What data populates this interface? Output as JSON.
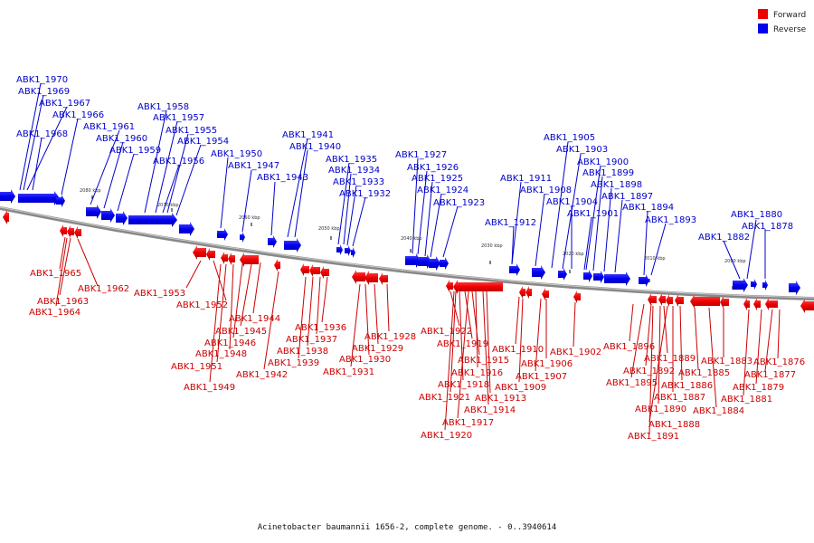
{
  "legend": [
    {
      "label": "Forward",
      "color": "#ee0000"
    },
    {
      "label": "Reverse",
      "color": "#0000ee"
    }
  ],
  "caption": "Acinetobacter baumannii 1656-2, complete genome. - 0..3940614",
  "ticks": [
    "2080 kbp",
    "2070 kbp",
    "2060 kbp",
    "2050 kbp",
    "2040 kbp",
    "2030 kbp",
    "2020 kbp",
    "2010 kbp",
    "2000 kbp"
  ],
  "reverse_genes": [
    "ABK1_1970",
    "ABK1_1969",
    "ABK1_1967",
    "ABK1_1966",
    "ABK1_1968",
    "ABK1_1961",
    "ABK1_1960",
    "ABK1_1959",
    "ABK1_1958",
    "ABK1_1957",
    "ABK1_1955",
    "ABK1_1954",
    "ABK1_1956",
    "ABK1_1950",
    "ABK1_1947",
    "ABK1_1943",
    "ABK1_1941",
    "ABK1_1940",
    "ABK1_1935",
    "ABK1_1934",
    "ABK1_1933",
    "ABK1_1932",
    "ABK1_1927",
    "ABK1_1926",
    "ABK1_1925",
    "ABK1_1924",
    "ABK1_1923",
    "ABK1_1911",
    "ABK1_1908",
    "ABK1_1912",
    "ABK1_1905",
    "ABK1_1903",
    "ABK1_1900",
    "ABK1_1899",
    "ABK1_1898",
    "ABK1_1897",
    "ABK1_1904",
    "ABK1_1901",
    "ABK1_1894",
    "ABK1_1893",
    "ABK1_1880",
    "ABK1_1878",
    "ABK1_1882"
  ],
  "forward_genes": [
    "ABK1_1965",
    "ABK1_1962",
    "ABK1_1963",
    "ABK1_1964",
    "ABK1_1953",
    "ABK1_1952",
    "ABK1_1944",
    "ABK1_1945",
    "ABK1_1946",
    "ABK1_1948",
    "ABK1_1951",
    "ABK1_1942",
    "ABK1_1949",
    "ABK1_1936",
    "ABK1_1937",
    "ABK1_1938",
    "ABK1_1939",
    "ABK1_1928",
    "ABK1_1929",
    "ABK1_1930",
    "ABK1_1931",
    "ABK1_1922",
    "ABK1_1919",
    "ABK1_1915",
    "ABK1_1916",
    "ABK1_1918",
    "ABK1_1921",
    "ABK1_1917",
    "ABK1_1920",
    "ABK1_1913",
    "ABK1_1914",
    "ABK1_1910",
    "ABK1_1906",
    "ABK1_1907",
    "ABK1_1909",
    "ABK1_1902",
    "ABK1_1896",
    "ABK1_1892",
    "ABK1_1895",
    "ABK1_1889",
    "ABK1_1886",
    "ABK1_1887",
    "ABK1_1890",
    "ABK1_1888",
    "ABK1_1891",
    "ABK1_1885",
    "ABK1_1883",
    "ABK1_1884",
    "ABK1_1876",
    "ABK1_1877",
    "ABK1_1879",
    "ABK1_1881"
  ]
}
